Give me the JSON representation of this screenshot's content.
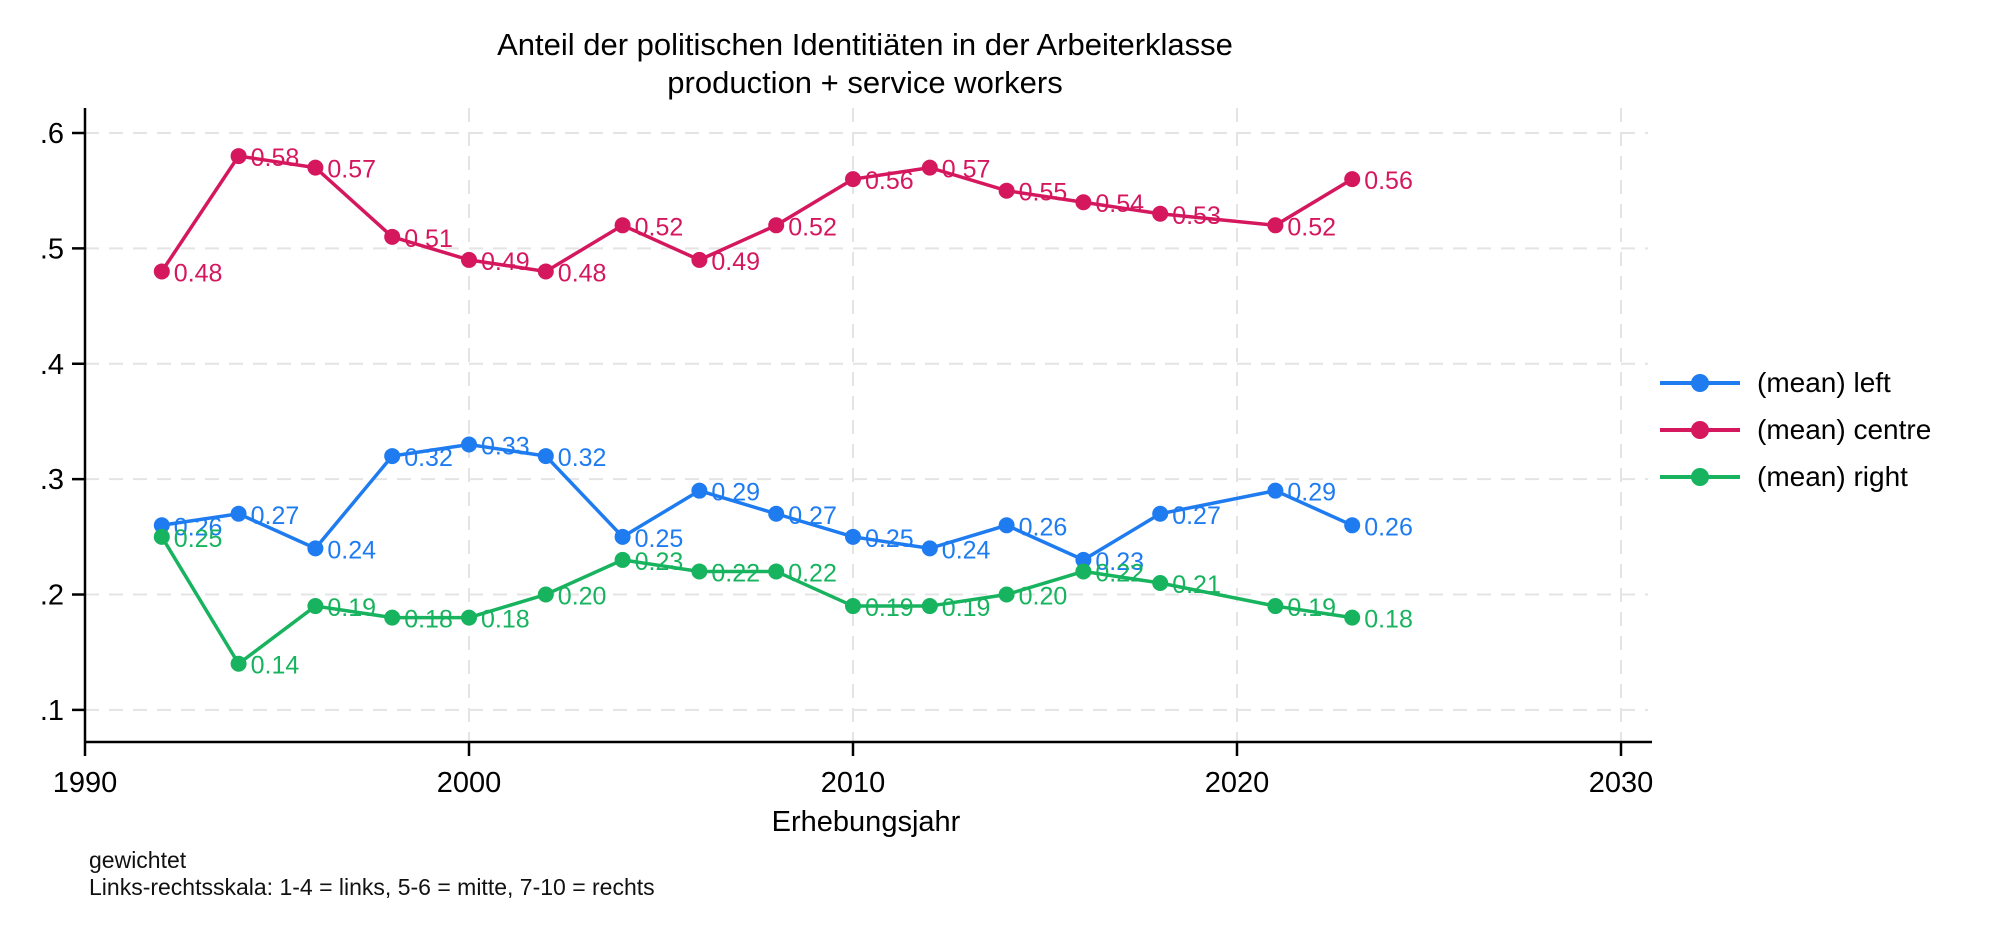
{
  "title": {
    "line1": "Anteil der politischen Identitiäten in der Arbeiterklasse",
    "line2": "production + service workers"
  },
  "axes": {
    "x_label": "Erhebungsjahr",
    "x_tick_labels": [
      "1990",
      "2000",
      "2010",
      "2020",
      "2030"
    ],
    "x_tick_values": [
      1990,
      2000,
      2010,
      2020,
      2030
    ],
    "y_tick_labels": [
      ".1",
      ".2",
      ".3",
      ".4",
      ".5",
      ".6"
    ],
    "y_tick_values": [
      0.1,
      0.2,
      0.3,
      0.4,
      0.5,
      0.6
    ]
  },
  "footnotes": [
    "gewichtet",
    "Links-rechtsskala: 1-4 = links, 5-6 = mitte, 7-10 = rechts"
  ],
  "style_colors": {
    "grid": "#e4e4e4",
    "axis": "#000000"
  },
  "chart_data": {
    "type": "line",
    "title": "Anteil der politischen Identitiäten in der Arbeiterklasse — production + service workers",
    "xlabel": "Erhebungsjahr",
    "ylabel": "",
    "xlim": [
      1990,
      2030
    ],
    "ylim": [
      0.07,
      0.62
    ],
    "grid": "dashed light-gray, horizontal at 0.1 steps and vertical at decades",
    "legend_position": "right",
    "x": [
      1992,
      1994,
      1996,
      1998,
      2000,
      2002,
      2004,
      2006,
      2008,
      2010,
      2012,
      2014,
      2016,
      2018,
      2021,
      2023
    ],
    "series": [
      {
        "name": "(mean) left",
        "color": "#1e7cf0",
        "values": [
          0.26,
          0.27,
          0.24,
          0.32,
          0.33,
          0.32,
          0.25,
          0.29,
          0.27,
          0.25,
          0.24,
          0.26,
          0.23,
          0.27,
          0.29,
          0.26
        ],
        "labels": [
          "0.26",
          "0.27",
          "0.24",
          "0.32",
          "0.33",
          "0.32",
          "0.25",
          "0.29",
          "0.27",
          "0.25",
          "0.24",
          "0.26",
          "0.23",
          "0.27",
          "0.29",
          "0.26"
        ]
      },
      {
        "name": "(mean) centre",
        "color": "#d5175e",
        "values": [
          0.48,
          0.58,
          0.57,
          0.51,
          0.49,
          0.48,
          0.52,
          0.49,
          0.52,
          0.56,
          0.57,
          0.55,
          0.54,
          0.53,
          0.52,
          0.56
        ],
        "labels": [
          "0.48",
          "0.58",
          "0.57",
          "0.51",
          "0.49",
          "0.48",
          "0.52",
          "0.49",
          "0.52",
          "0.56",
          "0.57",
          "0.55",
          "0.54",
          "0.53",
          "0.52",
          "0.56"
        ]
      },
      {
        "name": "(mean) right",
        "color": "#17b35e",
        "values": [
          0.25,
          0.14,
          0.19,
          0.18,
          0.18,
          0.2,
          0.23,
          0.22,
          0.22,
          0.19,
          0.19,
          0.2,
          0.22,
          0.21,
          0.19,
          0.18
        ],
        "labels": [
          "0.25",
          "0.14",
          "0.19",
          "0.18",
          "0.18",
          "0.20",
          "0.23",
          "0.22",
          "0.22",
          "0.19",
          "0.19",
          "0.20",
          "0.22",
          "0.21",
          "0.19",
          "0.18"
        ]
      }
    ]
  }
}
